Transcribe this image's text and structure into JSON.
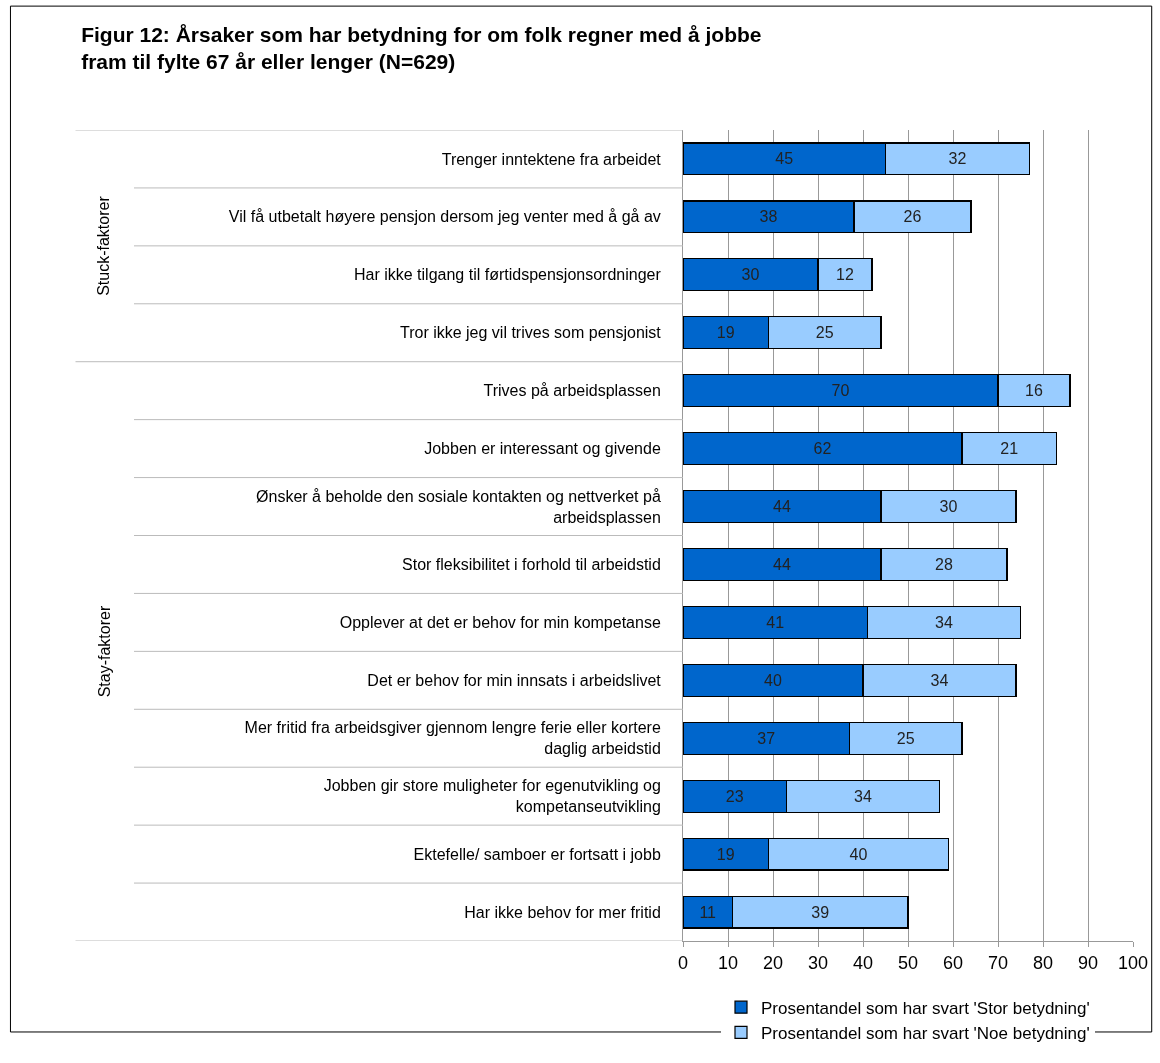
{
  "chart_data": {
    "type": "bar",
    "orientation": "horizontal",
    "stacked": true,
    "title": "Figur 12: Årsaker som har betydning for om folk regner med å jobbe fram til fylte 67 år eller lenger (N=629)",
    "categories": [
      "Trenger inntektene fra arbeidet",
      "Vil få utbetalt høyere pensjon dersom jeg venter med å gå av",
      "Har ikke tilgang til førtidspensjonsordninger",
      "Tror ikke jeg vil trives som pensjonist",
      "Trives på arbeidsplassen",
      "Jobben er interessant og givende",
      "Ønsker å beholde den sosiale kontakten og nettverket på arbeidsplassen",
      "Stor fleksibilitet i forhold til arbeidstid",
      "Opplever at det er behov for min kompetanse",
      "Det er behov for min innsats i arbeidslivet",
      "Mer fritid fra arbeidsgiver gjennom lengre ferie eller kortere daglig arbeidstid",
      "Jobben gir store muligheter for egenutvikling og kompetanseutvikling",
      "Ektefelle/ samboer er fortsatt i jobb",
      "Har ikke behov for mer fritid"
    ],
    "series": [
      {
        "name": "Prosentandel som har svart 'Stor betydning'",
        "color": "#0066cc",
        "values": [
          45,
          38,
          30,
          19,
          70,
          62,
          44,
          44,
          41,
          40,
          37,
          23,
          19,
          11
        ]
      },
      {
        "name": "Prosentandel som har svart 'Noe betydning'",
        "color": "#99ccff",
        "values": [
          32,
          26,
          12,
          25,
          16,
          21,
          30,
          28,
          34,
          34,
          25,
          34,
          40,
          39
        ]
      }
    ],
    "annotations": [
      "Stuck-faktorer",
      "Stay-faktorer"
    ],
    "data_labels": true,
    "xlim": [
      0,
      100
    ],
    "xticks": [
      0,
      10,
      20,
      30,
      40,
      50,
      60,
      70,
      80,
      90,
      100
    ],
    "grid": "x",
    "legend": "bottom"
  }
}
